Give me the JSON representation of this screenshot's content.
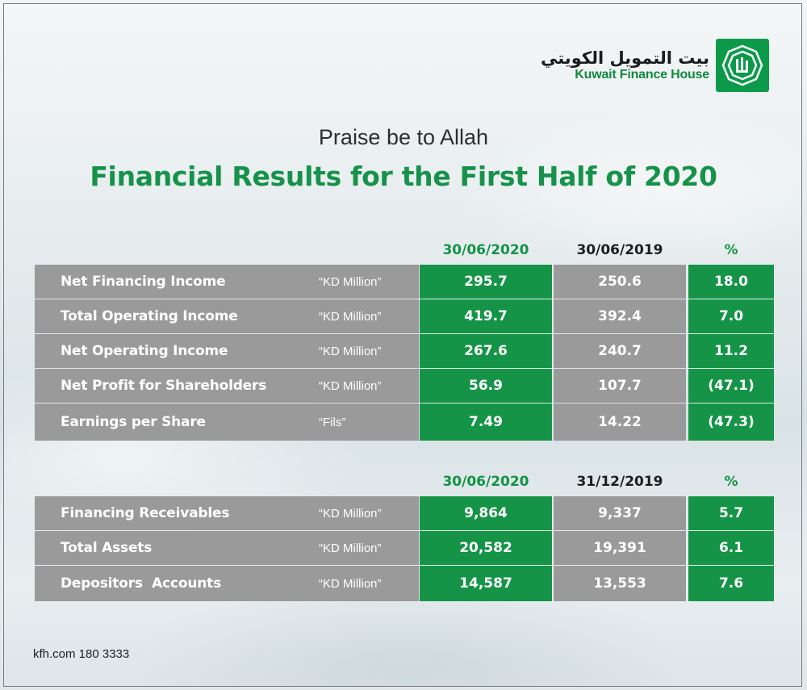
{
  "brand": {
    "name_ar": "بيت التمويل الكويتي",
    "name_en": "Kuwait Finance House",
    "color": "#159447"
  },
  "heading": {
    "sub": "Praise be to Allah",
    "main": "Financial Results for the First Half of 2020"
  },
  "table1": {
    "headers": [
      "30/06/2020",
      "30/06/2019",
      "%"
    ],
    "rows": [
      {
        "label": "Net Financing Income",
        "unit": "“KD Million”",
        "v1": "295.7",
        "v2": "250.6",
        "pct": "18.0"
      },
      {
        "label": "Total Operating Income",
        "unit": "“KD Million”",
        "v1": "419.7",
        "v2": "392.4",
        "pct": "7.0"
      },
      {
        "label": "Net Operating Income",
        "unit": "“KD Million”",
        "v1": "267.6",
        "v2": "240.7",
        "pct": "11.2"
      },
      {
        "label": "Net Profit for Shareholders",
        "unit": "“KD Million”",
        "v1": "56.9",
        "v2": "107.7",
        "pct": "(47.1)"
      },
      {
        "label": "Earnings per Share",
        "unit": "“Fils”",
        "v1": "7.49",
        "v2": "14.22",
        "pct": "(47.3)"
      }
    ]
  },
  "table2": {
    "headers": [
      "30/06/2020",
      "31/12/2019",
      "%"
    ],
    "rows": [
      {
        "label": "Financing Receivables",
        "unit": "“KD Million”",
        "v1": "9,864",
        "v2": "9,337",
        "pct": "5.7"
      },
      {
        "label": "Total Assets",
        "unit": "“KD Million”",
        "v1": "20,582",
        "v2": "19,391",
        "pct": "6.1"
      },
      {
        "label": "Depositors  Accounts",
        "unit": "“KD Million”",
        "v1": "14,587",
        "v2": "13,553",
        "pct": "7.6"
      }
    ]
  },
  "footer": {
    "contact": "kfh.com 180 3333"
  }
}
